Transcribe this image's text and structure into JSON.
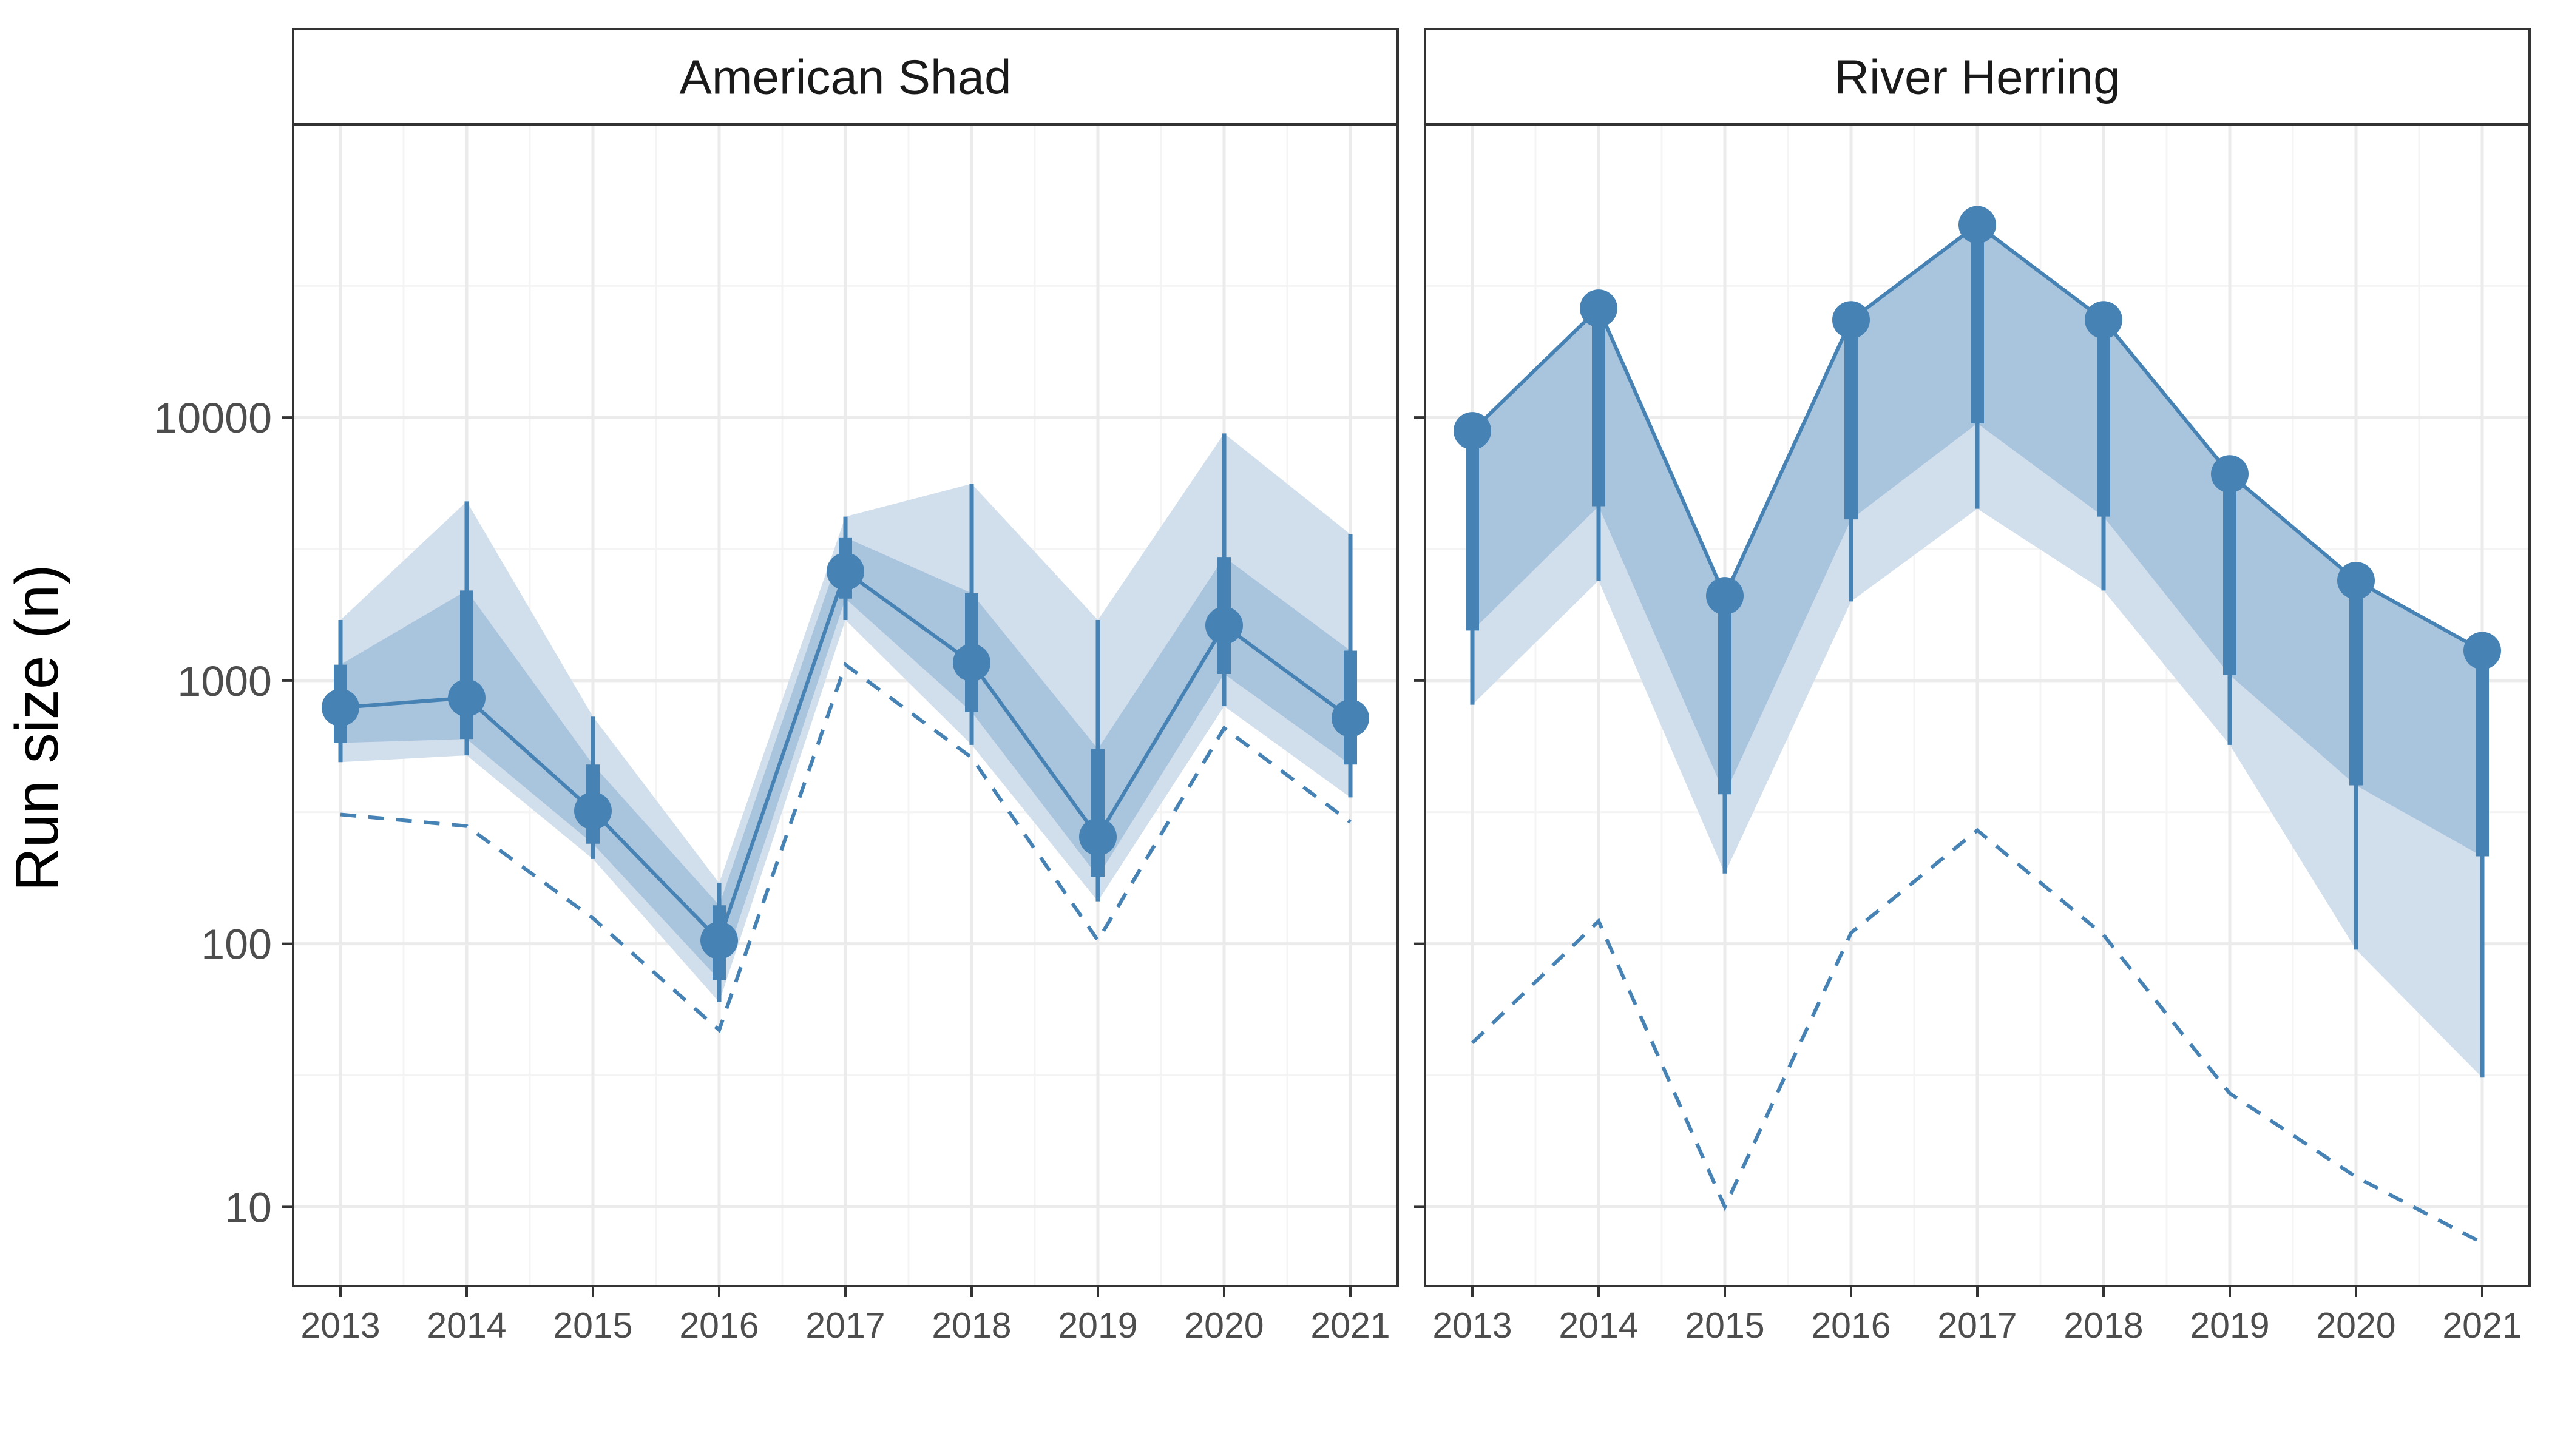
{
  "colors": {
    "accent": "#4682B4",
    "band_outer": "#D1DEEC",
    "band_inner": "#A9C4DD",
    "grid_major": "#EBEBEB",
    "grid_minor": "#F4F4F4",
    "strip_bg": "#FFFFFF",
    "strip_border": "#333333"
  },
  "chart_data": {
    "type": "line",
    "ylabel": "Run size (n)",
    "xlabel": "",
    "y_scale": "log10",
    "ylim": [
      5,
      130000
    ],
    "y_ticks": [
      10,
      100,
      1000,
      10000
    ],
    "y_tick_labels": [
      "10",
      "100",
      "1000",
      "10000"
    ],
    "x_ticks": [
      2013,
      2014,
      2015,
      2016,
      2017,
      2018,
      2019,
      2020,
      2021
    ],
    "x_tick_labels": [
      "2013",
      "2014",
      "2015",
      "2016",
      "2017",
      "2018",
      "2019",
      "2020",
      "2021"
    ],
    "grid": true,
    "legend": "none",
    "panels": [
      {
        "title": "American Shad",
        "x": [
          2013,
          2014,
          2015,
          2016,
          2017,
          2018,
          2019,
          2020,
          2021
        ],
        "median": [
          790,
          860,
          320,
          103,
          2600,
          1170,
          255,
          1620,
          720
        ],
        "ci95_lower": [
          490,
          520,
          210,
          60,
          1700,
          570,
          145,
          800,
          360
        ],
        "ci95_upper": [
          1700,
          4800,
          730,
          170,
          4200,
          5600,
          1700,
          8700,
          3600
        ],
        "ci50_lower": [
          580,
          600,
          240,
          73,
          2050,
          760,
          180,
          1060,
          480
        ],
        "ci50_upper": [
          1150,
          2200,
          480,
          140,
          3500,
          2150,
          550,
          2950,
          1300
        ],
        "dashed_line": [
          310,
          280,
          125,
          47,
          1150,
          510,
          103,
          660,
          290
        ]
      },
      {
        "title": "River Herring",
        "x": [
          2013,
          2014,
          2015,
          2016,
          2017,
          2018,
          2019,
          2020,
          2021
        ],
        "median": [
          8900,
          26000,
          2100,
          23500,
          54000,
          23500,
          6100,
          2400,
          1300
        ],
        "ci95_lower": [
          810,
          2400,
          185,
          2000,
          4500,
          2200,
          570,
          95,
          31
        ],
        "ci95_upper": [
          8900,
          26000,
          2100,
          23500,
          54000,
          23500,
          6100,
          2400,
          1300
        ],
        "ci50_lower": [
          1550,
          4600,
          370,
          4100,
          9500,
          4200,
          1050,
          400,
          215
        ],
        "ci50_upper": [
          8900,
          26000,
          2100,
          23500,
          54000,
          23500,
          6100,
          2400,
          1300
        ],
        "dashed_line": [
          42,
          122,
          10,
          110,
          270,
          108,
          27,
          13,
          7.3
        ]
      }
    ]
  }
}
